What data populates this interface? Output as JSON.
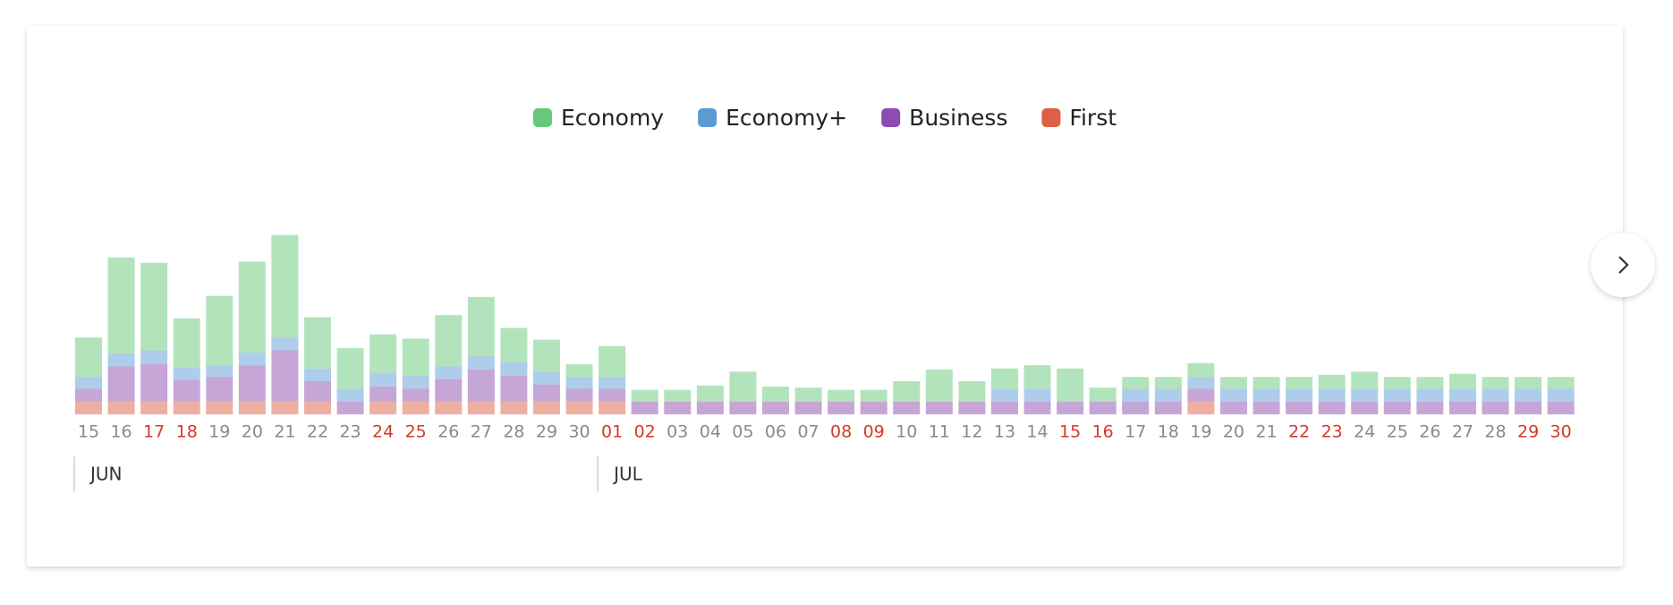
{
  "chart_data": {
    "type": "bar",
    "stacked": true,
    "categories": [
      "15",
      "16",
      "17",
      "18",
      "19",
      "20",
      "21",
      "22",
      "23",
      "24",
      "25",
      "26",
      "27",
      "28",
      "29",
      "30",
      "01",
      "02",
      "03",
      "04",
      "05",
      "06",
      "07",
      "08",
      "09",
      "10",
      "11",
      "12",
      "13",
      "14",
      "15",
      "16",
      "17",
      "18",
      "19",
      "20",
      "21",
      "22",
      "23",
      "24",
      "25",
      "26",
      "27",
      "28",
      "29",
      "30"
    ],
    "category_colors": [
      "#8a8a8a",
      "#8a8a8a",
      "#d23a2a",
      "#d23a2a",
      "#8a8a8a",
      "#8a8a8a",
      "#8a8a8a",
      "#8a8a8a",
      "#8a8a8a",
      "#d23a2a",
      "#d23a2a",
      "#8a8a8a",
      "#8a8a8a",
      "#8a8a8a",
      "#8a8a8a",
      "#8a8a8a",
      "#d23a2a",
      "#d23a2a",
      "#8a8a8a",
      "#8a8a8a",
      "#8a8a8a",
      "#8a8a8a",
      "#8a8a8a",
      "#d23a2a",
      "#d23a2a",
      "#8a8a8a",
      "#8a8a8a",
      "#8a8a8a",
      "#8a8a8a",
      "#8a8a8a",
      "#d23a2a",
      "#d23a2a",
      "#8a8a8a",
      "#8a8a8a",
      "#8a8a8a",
      "#8a8a8a",
      "#8a8a8a",
      "#d23a2a",
      "#d23a2a",
      "#8a8a8a",
      "#8a8a8a",
      "#8a8a8a",
      "#8a8a8a",
      "#8a8a8a",
      "#d23a2a",
      "#d23a2a"
    ],
    "months": [
      "JUN",
      "JUL"
    ],
    "series": [
      {
        "name": "First",
        "color": "#dd5f48",
        "values": [
          12,
          12,
          12,
          12,
          12,
          12,
          12,
          12,
          0,
          12,
          12,
          12,
          12,
          12,
          12,
          12,
          12,
          0,
          0,
          0,
          0,
          0,
          0,
          0,
          0,
          0,
          0,
          0,
          0,
          0,
          0,
          0,
          0,
          0,
          12,
          0,
          0,
          0,
          0,
          0,
          0,
          0,
          0,
          0,
          0,
          0
        ]
      },
      {
        "name": "Business",
        "color": "#8e4bb0",
        "values": [
          12,
          33,
          35,
          20,
          23,
          34,
          48,
          19,
          12,
          14,
          12,
          21,
          30,
          24,
          16,
          12,
          12,
          12,
          12,
          12,
          12,
          12,
          12,
          12,
          12,
          12,
          12,
          12,
          12,
          12,
          12,
          12,
          12,
          12,
          12,
          12,
          12,
          12,
          12,
          12,
          12,
          12,
          12,
          12,
          12,
          12
        ]
      },
      {
        "name": "Economy+",
        "color": "#5b9bd5",
        "values": [
          11,
          12,
          13,
          12,
          11,
          12,
          12,
          12,
          12,
          13,
          12,
          12,
          13,
          13,
          12,
          11,
          11,
          0,
          0,
          0,
          0,
          0,
          0,
          0,
          0,
          0,
          0,
          0,
          12,
          12,
          0,
          0,
          12,
          12,
          11,
          12,
          12,
          12,
          12,
          12,
          12,
          12,
          12,
          12,
          12,
          12
        ]
      },
      {
        "name": "Economy",
        "color": "#66c97a",
        "values": [
          37,
          90,
          82,
          46,
          65,
          85,
          96,
          48,
          38,
          36,
          35,
          48,
          55,
          32,
          30,
          12,
          29,
          11,
          11,
          15,
          28,
          14,
          13,
          11,
          11,
          19,
          30,
          19,
          19,
          22,
          31,
          13,
          11,
          11,
          13,
          11,
          11,
          11,
          13,
          16,
          11,
          11,
          14,
          11,
          11,
          11
        ]
      }
    ],
    "legend_order": [
      3,
      2,
      1,
      0
    ]
  }
}
